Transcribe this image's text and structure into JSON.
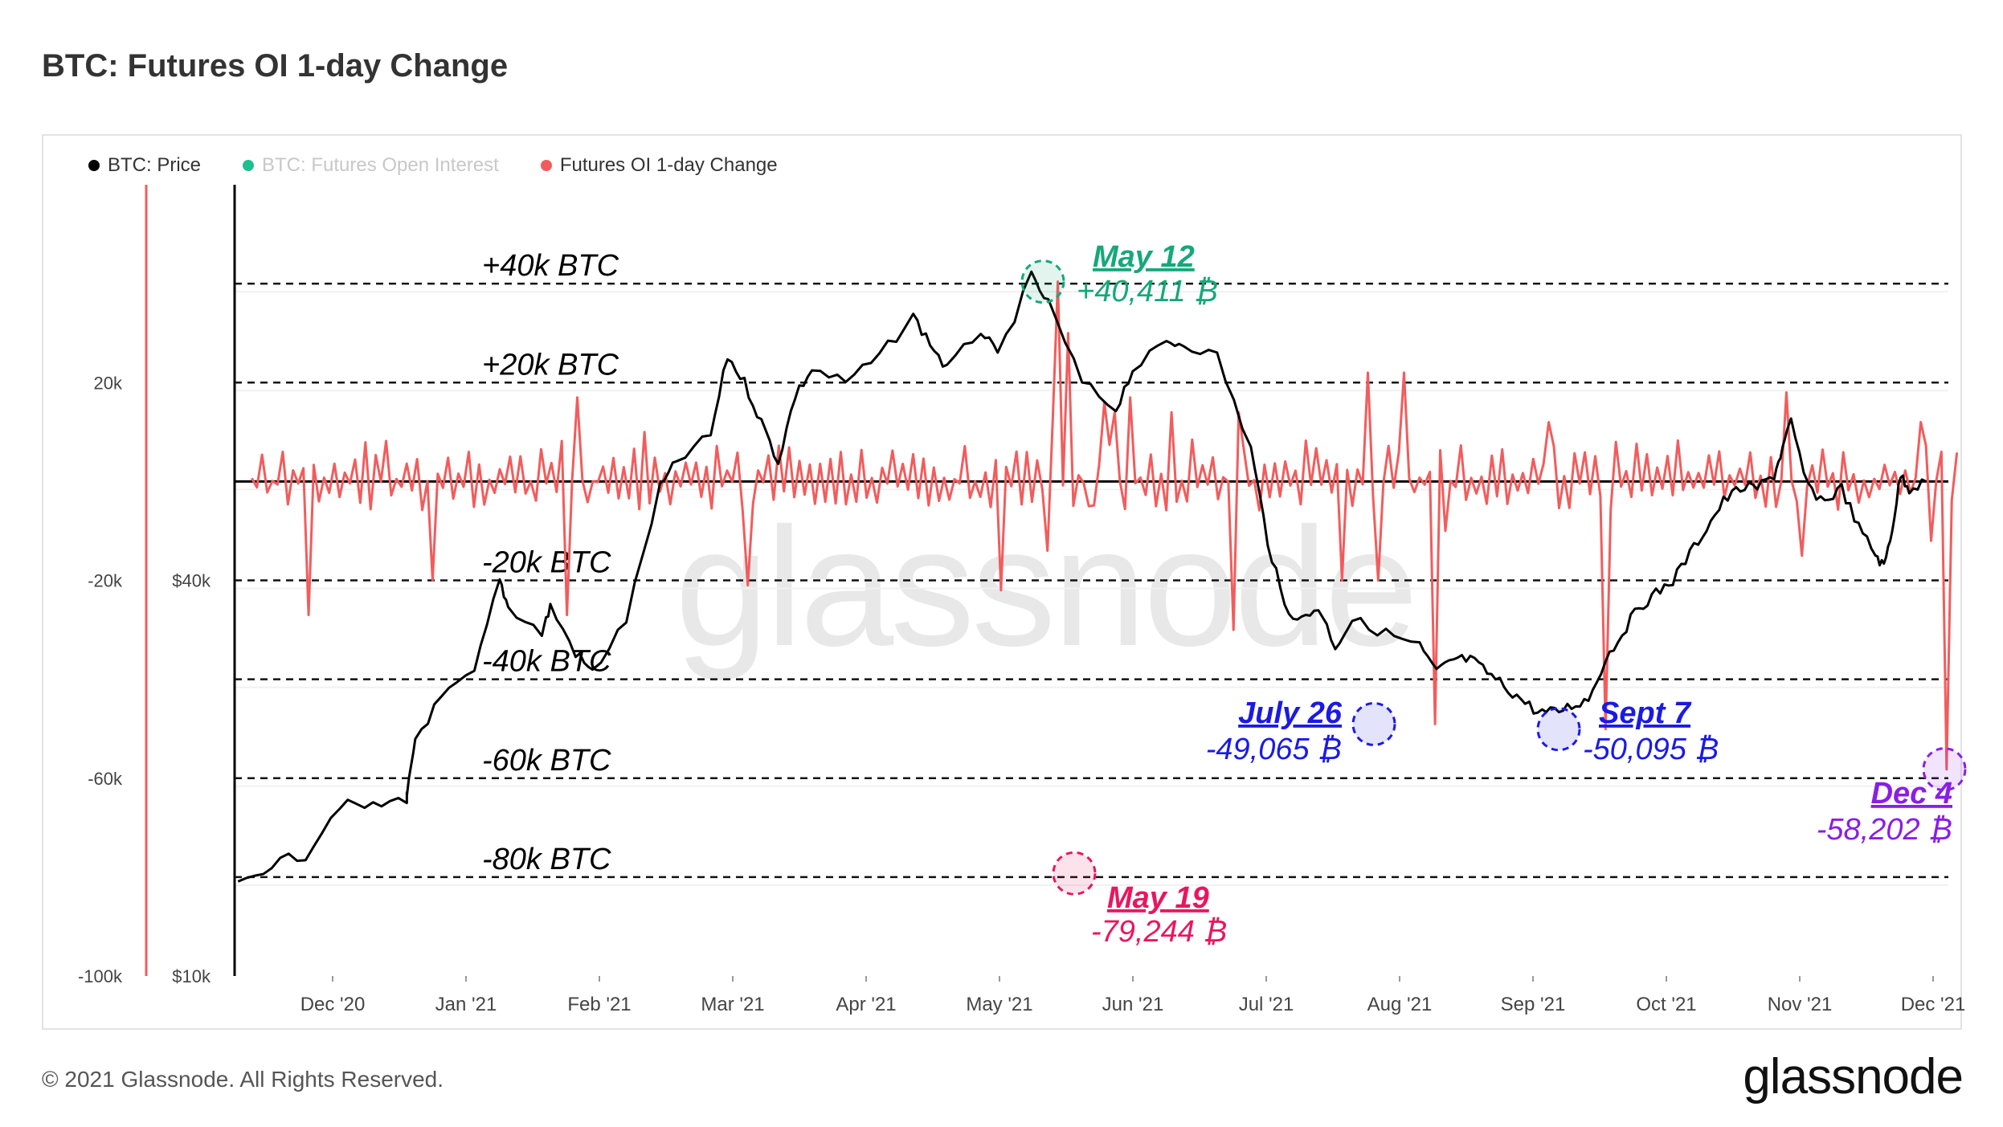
{
  "title": "BTC: Futures OI 1-day Change",
  "legend": [
    {
      "label": "BTC: Price",
      "color": "#000000",
      "dimmed": false
    },
    {
      "label": "BTC: Futures Open Interest",
      "color": "#1fbf8f",
      "dimmed": true
    },
    {
      "label": "Futures OI 1-day Change",
      "color": "#f25c5c",
      "dimmed": false
    }
  ],
  "footer": "© 2021 Glassnode. All Rights Reserved.",
  "brand": "glassnode",
  "watermark": "glassnode",
  "chart_data": {
    "type": "line",
    "x_tick_labels": [
      "Dec '20",
      "Jan '21",
      "Feb '21",
      "Mar '21",
      "Apr '21",
      "May '21",
      "Jun '21",
      "Jul '21",
      "Aug '21",
      "Sep '21",
      "Oct '21",
      "Nov '21",
      "Dec '21"
    ],
    "left_axis_ticks": [
      "20k",
      "-20k",
      "-60k",
      "-100k"
    ],
    "price_axis_ticks": [
      "$40k",
      "$10k"
    ],
    "reference_lines": [
      {
        "label": "+40k BTC",
        "value": 40000
      },
      {
        "label": "+20k BTC",
        "value": 20000
      },
      {
        "label": "-20k BTC",
        "value": -20000
      },
      {
        "label": "-40k BTC",
        "value": -40000
      },
      {
        "label": "-60k BTC",
        "value": -60000
      },
      {
        "label": "-80k BTC",
        "value": -80000
      }
    ],
    "oi_change_ylim": [
      -100000,
      60000
    ],
    "price_ylim": [
      10000,
      70000
    ],
    "annotations": [
      {
        "date": "May 12",
        "value_label": "+40,411 ₿",
        "value": 40411,
        "color": "#15a87a"
      },
      {
        "date": "May 19",
        "value_label": "-79,244 ₿",
        "value": -79244,
        "color": "#e8175d"
      },
      {
        "date": "July 26",
        "value_label": "-49,065 ₿",
        "value": -49065,
        "color": "#1a1ae6"
      },
      {
        "date": "Sept 7",
        "value_label": "-50,095 ₿",
        "value": -50095,
        "color": "#1a1ae6"
      },
      {
        "date": "Dec 4",
        "value_label": "-58,202 ₿",
        "value": -58202,
        "color": "#8a1ee6"
      }
    ],
    "series": [
      {
        "name": "BTC: Price",
        "color": "#000000",
        "points": [
          [
            0,
            17000
          ],
          [
            0.02,
            18500
          ],
          [
            0.04,
            19200
          ],
          [
            0.06,
            23000
          ],
          [
            0.08,
            22800
          ],
          [
            0.1,
            23500
          ],
          [
            0.1,
            23500
          ],
          [
            0.1,
            23500
          ],
          [
            0.105,
            28000
          ],
          [
            0.12,
            31000
          ],
          [
            0.14,
            33000
          ],
          [
            0.155,
            40000
          ],
          [
            0.16,
            38000
          ],
          [
            0.18,
            36000
          ],
          [
            0.185,
            38000
          ],
          [
            0.2,
            34500
          ],
          [
            0.21,
            33000
          ],
          [
            0.23,
            37000
          ],
          [
            0.25,
            47000
          ],
          [
            0.26,
            49000
          ],
          [
            0.28,
            51000
          ],
          [
            0.29,
            57000
          ],
          [
            0.3,
            55000
          ],
          [
            0.31,
            52000
          ],
          [
            0.32,
            49000
          ],
          [
            0.33,
            54000
          ],
          [
            0.34,
            56000
          ],
          [
            0.36,
            55000
          ],
          [
            0.38,
            57000
          ],
          [
            0.4,
            60000
          ],
          [
            0.41,
            58000
          ],
          [
            0.42,
            56000
          ],
          [
            0.44,
            59000
          ],
          [
            0.45,
            57000
          ],
          [
            0.47,
            63000
          ],
          [
            0.48,
            61000
          ],
          [
            0.5,
            55000
          ],
          [
            0.52,
            53000
          ],
          [
            0.53,
            56000
          ],
          [
            0.55,
            58000
          ],
          [
            0.56,
            58000
          ],
          [
            0.58,
            57000
          ],
          [
            0.6,
            50000
          ],
          [
            0.61,
            43000
          ],
          [
            0.62,
            38000
          ],
          [
            0.63,
            37000
          ],
          [
            0.64,
            38000
          ],
          [
            0.65,
            35000
          ],
          [
            0.66,
            37000
          ],
          [
            0.68,
            36000
          ],
          [
            0.7,
            35000
          ],
          [
            0.71,
            33000
          ],
          [
            0.72,
            34000
          ],
          [
            0.73,
            34000
          ],
          [
            0.74,
            33000
          ],
          [
            0.75,
            32000
          ],
          [
            0.76,
            31000
          ],
          [
            0.77,
            30000
          ],
          [
            0.78,
            30000
          ],
          [
            0.79,
            30500
          ],
          [
            0.8,
            31000
          ],
          [
            0.81,
            34000
          ],
          [
            0.82,
            36000
          ],
          [
            0.83,
            38000
          ],
          [
            0.84,
            39000
          ],
          [
            0.85,
            40000
          ],
          [
            0.86,
            42000
          ],
          [
            0.87,
            44000
          ],
          [
            0.88,
            46000
          ],
          [
            0.89,
            47000
          ],
          [
            0.9,
            47000
          ],
          [
            0.91,
            48000
          ],
          [
            0.915,
            50000
          ],
          [
            0.92,
            52000
          ],
          [
            0.93,
            47000
          ],
          [
            0.94,
            46000
          ],
          [
            0.95,
            47000
          ],
          [
            0.96,
            44000
          ],
          [
            0.97,
            42000
          ],
          [
            0.975,
            41000
          ],
          [
            0.98,
            44000
          ],
          [
            0.985,
            48000
          ],
          [
            0.99,
            47000
          ],
          [
            1.0,
            47500
          ]
        ]
      },
      {
        "name": "Futures OI 1-day Change",
        "color": "#f25c5c"
      }
    ]
  }
}
